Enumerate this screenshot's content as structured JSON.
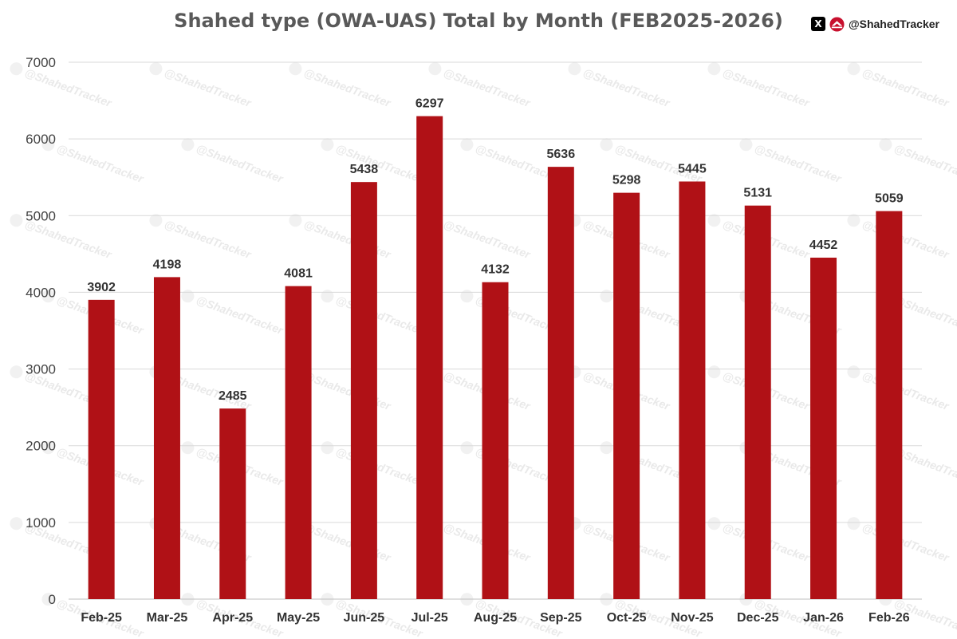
{
  "chart_data": {
    "type": "bar",
    "title": "Shahed type (OWA-UAS) Total by Month (FEB2025-2026)",
    "xlabel": "",
    "ylabel": "",
    "categories": [
      "Feb-25",
      "Mar-25",
      "Apr-25",
      "May-25",
      "Jun-25",
      "Jul-25",
      "Aug-25",
      "Sep-25",
      "Oct-25",
      "Nov-25",
      "Dec-25",
      "Jan-26",
      "Feb-26"
    ],
    "values": [
      3902,
      4198,
      2485,
      4081,
      5438,
      6297,
      4132,
      5636,
      5298,
      5445,
      5131,
      4452,
      5059
    ],
    "ylim": [
      0,
      7000
    ],
    "yticks": [
      0,
      1000,
      2000,
      3000,
      4000,
      5000,
      6000,
      7000
    ],
    "grid": true,
    "data_labels": true,
    "bar_color": "#b01116"
  },
  "branding": {
    "x_icon": "X",
    "logo_icon": "shahedtracker-logo-icon",
    "handle": "@ShahedTracker",
    "watermark": "@ShahedTracker"
  }
}
